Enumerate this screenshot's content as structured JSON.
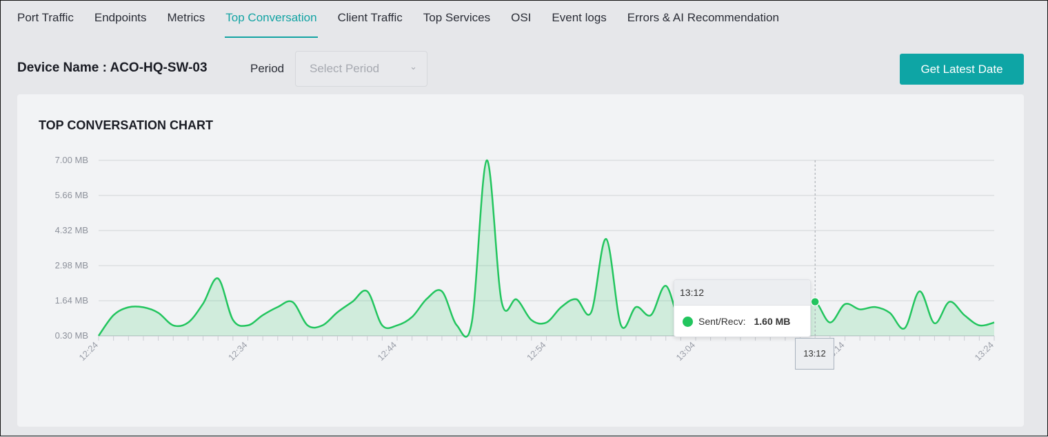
{
  "tabs": [
    "Port Traffic",
    "Endpoints",
    "Metrics",
    "Top Conversation",
    "Client Traffic",
    "Top Services",
    "OSI",
    "Event logs",
    "Errors & AI Recommendation"
  ],
  "active_tab": "Top Conversation",
  "device_label": "Device Name : ACO-HQ-SW-03",
  "period_label": "Period",
  "period_placeholder": "Select Period",
  "get_latest_button": "Get Latest Date",
  "accent_color": "#0ea5a5",
  "series_color": "#22c55e",
  "tooltip": {
    "time": "13:12",
    "series": "Sent/Recv:",
    "value": "1.60 MB"
  },
  "crosshair_label": "13:12",
  "chart_data": {
    "type": "area",
    "title": "TOP CONVERSATION CHART",
    "xlabel": "",
    "ylabel": "",
    "start_time": "12:24",
    "end_time": "13:24",
    "interval_minutes": 1,
    "ylim": [
      0.3,
      7.0
    ],
    "y_ticks": [
      "0.30 MB",
      "1.64 MB",
      "2.98 MB",
      "4.32 MB",
      "5.66 MB",
      "7.00 MB"
    ],
    "x_tick_labels": [
      "12:24",
      "12:34",
      "12:44",
      "12:54",
      "13:04",
      "13:14",
      "13:24"
    ],
    "grid": true,
    "series": [
      {
        "name": "Sent/Recv",
        "unit": "MB",
        "values": [
          0.3,
          1.09,
          1.39,
          1.39,
          1.18,
          0.7,
          0.81,
          1.53,
          2.49,
          0.91,
          0.7,
          1.09,
          1.4,
          1.59,
          0.7,
          0.7,
          1.2,
          1.6,
          2.0,
          0.7,
          0.7,
          1.02,
          1.72,
          2.0,
          0.7,
          0.81,
          7.0,
          1.6,
          1.69,
          0.9,
          0.81,
          1.4,
          1.7,
          1.2,
          4.0,
          0.7,
          1.4,
          1.09,
          2.21,
          0.74,
          0.9,
          1.3,
          1.0,
          0.8,
          1.1,
          1.4,
          0.9,
          1.3,
          1.6,
          0.81,
          1.51,
          1.31,
          1.4,
          1.18,
          0.59,
          2.0,
          0.78,
          1.6,
          1.09,
          0.7,
          0.81
        ]
      }
    ]
  }
}
